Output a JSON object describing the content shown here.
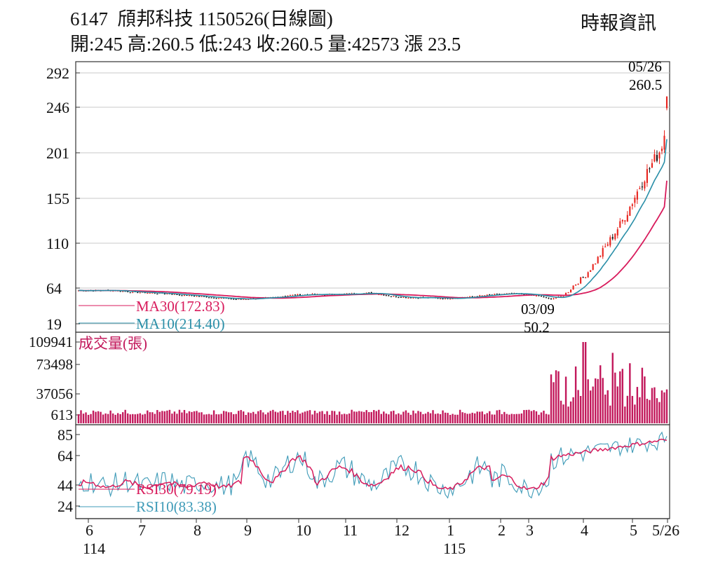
{
  "header": {
    "code": "6147",
    "name": "頎邦科技",
    "date_code": "1150526(日線圖)",
    "source": "時報資訊",
    "quote_line": "開:245 高:260.5 低:243 收:260.5 量:42573 漲 23.5"
  },
  "colors": {
    "up": "#e8231d",
    "down": "#111111",
    "ma30": "#d81b5c",
    "ma10": "#2a8fa8",
    "rsi30": "#d81b5c",
    "rsi10": "#3f9bb8",
    "volume": "#c2185b",
    "grid": "#c8c8c8",
    "frame": "#333333"
  },
  "chart_data": [
    {
      "type": "candlestick",
      "title": "6147 頎邦科技 1150526(日線圖)",
      "ylim": [
        19,
        292
      ],
      "y_ticks": [
        292,
        246,
        201,
        155,
        110,
        64,
        19
      ],
      "annotations": [
        {
          "label": "05/26",
          "value": "260.5"
        },
        {
          "label": "03/09",
          "value": "50.2"
        }
      ],
      "last": {
        "open": 245,
        "high": 260.5,
        "low": 243,
        "close": 260.5,
        "volume": 42573,
        "change": 23.5
      },
      "series": [
        {
          "name": "MA30(172.83)",
          "last_value": 172.83
        },
        {
          "name": "MA10(214.40)",
          "last_value": 214.4
        }
      ],
      "price_path": [
        [
          0,
          61
        ],
        [
          0.03,
          61
        ],
        [
          0.06,
          61
        ],
        [
          0.09,
          59
        ],
        [
          0.12,
          58
        ],
        [
          0.15,
          57
        ],
        [
          0.18,
          55
        ],
        [
          0.2,
          54
        ],
        [
          0.23,
          52
        ],
        [
          0.27,
          50
        ],
        [
          0.3,
          51
        ],
        [
          0.33,
          52
        ],
        [
          0.36,
          55
        ],
        [
          0.4,
          56
        ],
        [
          0.44,
          56
        ],
        [
          0.47,
          57
        ],
        [
          0.5,
          58
        ],
        [
          0.53,
          54
        ],
        [
          0.56,
          52
        ],
        [
          0.59,
          52
        ],
        [
          0.62,
          51
        ],
        [
          0.65,
          52
        ],
        [
          0.68,
          54
        ],
        [
          0.71,
          56
        ],
        [
          0.74,
          57
        ],
        [
          0.77,
          55
        ],
        [
          0.79,
          53
        ],
        [
          0.8,
          50.2
        ],
        [
          0.82,
          53
        ],
        [
          0.83,
          58
        ],
        [
          0.84,
          66
        ],
        [
          0.86,
          76
        ],
        [
          0.88,
          92
        ],
        [
          0.9,
          110
        ],
        [
          0.92,
          128
        ],
        [
          0.93,
          138
        ],
        [
          0.94,
          150
        ],
        [
          0.95,
          162
        ],
        [
          0.96,
          175
        ],
        [
          0.97,
          185
        ],
        [
          0.98,
          195
        ],
        [
          0.99,
          205
        ],
        [
          1.0,
          230
        ],
        [
          1.0,
          260.5
        ]
      ]
    },
    {
      "type": "bar",
      "title": "成交量(張)",
      "ylim": [
        613,
        109941
      ],
      "y_ticks": [
        109941,
        73498,
        37056,
        613
      ]
    },
    {
      "type": "line",
      "ylim": [
        24,
        85
      ],
      "y_ticks": [
        85,
        64,
        44,
        24
      ],
      "series": [
        {
          "name": "RSI30(79.19)",
          "last_value": 79.19
        },
        {
          "name": "RSI10(83.38)",
          "last_value": 83.38
        }
      ],
      "x_ticks": [
        "6",
        "7",
        "8",
        "9",
        "10",
        "11",
        "12",
        "1",
        "2",
        "3",
        "4",
        "5",
        "5/26"
      ],
      "x_year_labels": [
        "114",
        "115"
      ]
    }
  ]
}
